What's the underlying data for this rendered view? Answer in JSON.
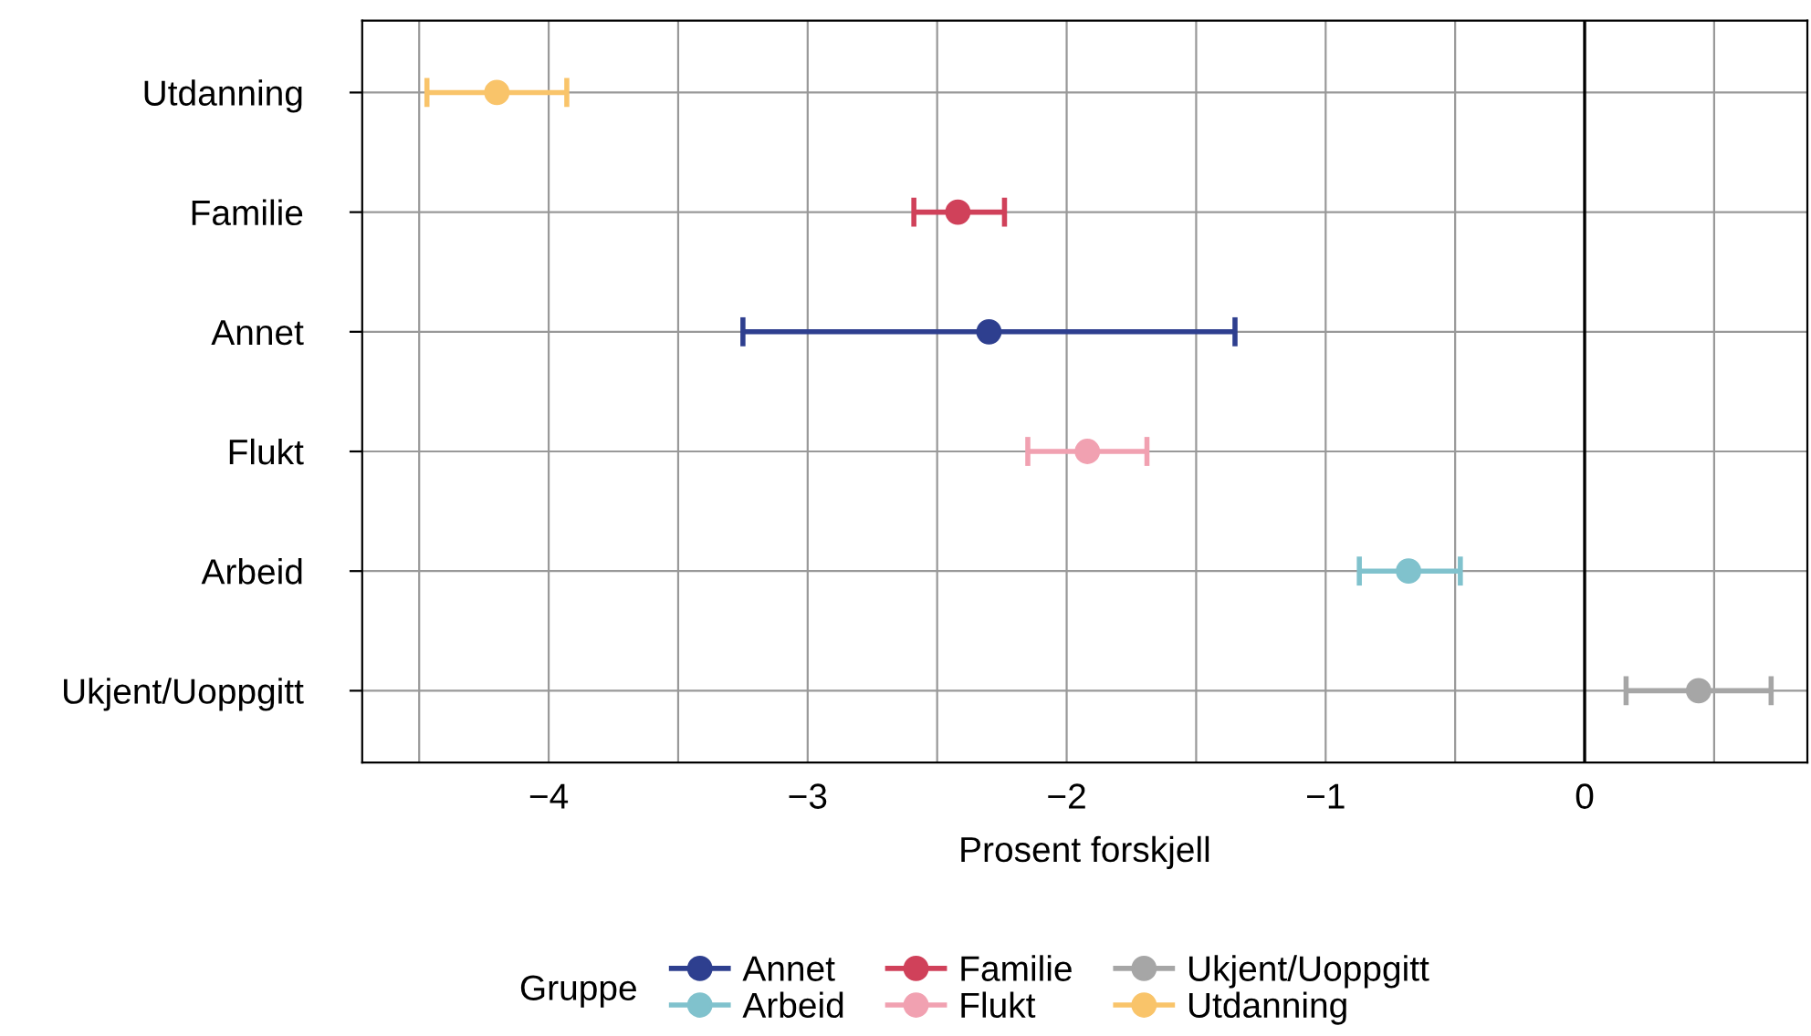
{
  "chart_data": {
    "type": "scatter",
    "orientation": "horizontal",
    "xlabel": "Prosent forskjell",
    "legend_title": "Gruppe",
    "legend": "bottom",
    "grid": true,
    "marker": "circle",
    "categories": [
      "Utdanning",
      "Familie",
      "Annet",
      "Flukt",
      "Arbeid",
      "Ukjent/Uoppgitt"
    ],
    "xlim": [
      -4.72,
      0.86
    ],
    "xticks": [
      {
        "value": -4.5,
        "label": null
      },
      -4,
      {
        "value": -3.5,
        "label": null
      },
      -3,
      {
        "value": -2.5,
        "label": null
      },
      -2,
      {
        "value": -1.5,
        "label": null
      },
      -1,
      {
        "value": -0.5,
        "label": null
      },
      0,
      {
        "value": 0.5,
        "label": null
      }
    ],
    "ref_lines": [
      {
        "axis": "x",
        "value": 0,
        "color": "#000000"
      }
    ],
    "series": [
      {
        "name": "Annet",
        "color": "#2e3f8f",
        "values": [
          null,
          null,
          -2.3,
          null,
          null,
          null
        ],
        "errors": [
          null,
          null,
          [
            -3.25,
            -1.35
          ],
          null,
          null,
          null
        ]
      },
      {
        "name": "Arbeid",
        "color": "#80c2cd",
        "values": [
          null,
          null,
          null,
          null,
          -0.68,
          null
        ],
        "errors": [
          null,
          null,
          null,
          null,
          [
            -0.87,
            -0.48
          ],
          null
        ]
      },
      {
        "name": "Familie",
        "color": "#d0415a",
        "values": [
          null,
          -2.42,
          null,
          null,
          null,
          null
        ],
        "errors": [
          null,
          [
            -2.59,
            -2.24
          ],
          null,
          null,
          null,
          null
        ]
      },
      {
        "name": "Flukt",
        "color": "#f1a1b1",
        "values": [
          null,
          null,
          null,
          -1.92,
          null,
          null
        ],
        "errors": [
          null,
          null,
          null,
          [
            -2.15,
            -1.69
          ],
          null,
          null
        ]
      },
      {
        "name": "Ukjent/Uoppgitt",
        "color": "#a6a6a6",
        "values": [
          null,
          null,
          null,
          null,
          null,
          0.44
        ],
        "errors": [
          null,
          null,
          null,
          null,
          null,
          [
            0.16,
            0.72
          ]
        ]
      },
      {
        "name": "Utdanning",
        "color": "#f9c46a",
        "values": [
          -4.2,
          null,
          null,
          null,
          null,
          null
        ],
        "errors": [
          [
            -4.47,
            -3.93
          ],
          null,
          null,
          null,
          null,
          null
        ]
      }
    ]
  }
}
